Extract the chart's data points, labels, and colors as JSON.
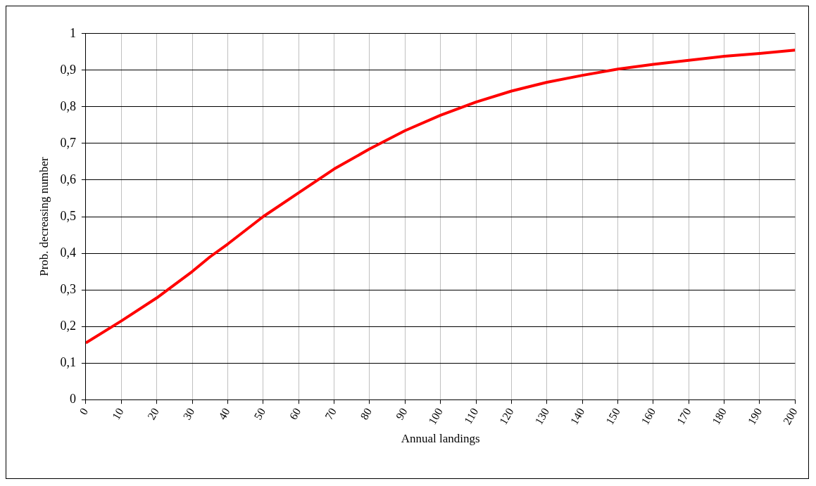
{
  "chart_data": {
    "type": "line",
    "xlabel": "Annual landings",
    "ylabel": "Prob. decreasing number",
    "x": [
      0,
      10,
      20,
      30,
      35,
      40,
      50,
      60,
      70,
      80,
      90,
      100,
      110,
      120,
      130,
      140,
      150,
      160,
      170,
      180,
      190,
      200
    ],
    "series": [
      {
        "color": "#ff0000",
        "values": [
          0.155,
          0.215,
          0.278,
          0.35,
          0.39,
          0.425,
          0.5,
          0.565,
          0.63,
          0.685,
          0.735,
          0.777,
          0.813,
          0.843,
          0.867,
          0.886,
          0.903,
          0.916,
          0.927,
          0.938,
          0.946,
          0.955
        ]
      }
    ],
    "xlim": [
      0,
      200
    ],
    "xticks": [
      0,
      10,
      20,
      30,
      40,
      50,
      60,
      70,
      80,
      90,
      100,
      110,
      120,
      130,
      140,
      150,
      160,
      170,
      180,
      190,
      200
    ],
    "ylim": [
      0,
      1
    ],
    "yticks": [
      0,
      {
        "value": 0.1,
        "label": "0,1"
      },
      {
        "value": 0.2,
        "label": "0,2"
      },
      {
        "value": 0.3,
        "label": "0,3"
      },
      {
        "value": 0.4,
        "label": "0,4"
      },
      {
        "value": 0.5,
        "label": "0,5"
      },
      {
        "value": 0.6,
        "label": "0,6"
      },
      {
        "value": 0.7,
        "label": "0,7"
      },
      {
        "value": 0.8,
        "label": "0,8"
      },
      {
        "value": 0.9,
        "label": "0,9"
      },
      1
    ],
    "grid": true,
    "legend": false,
    "marker": "none",
    "line_style": "solid"
  }
}
